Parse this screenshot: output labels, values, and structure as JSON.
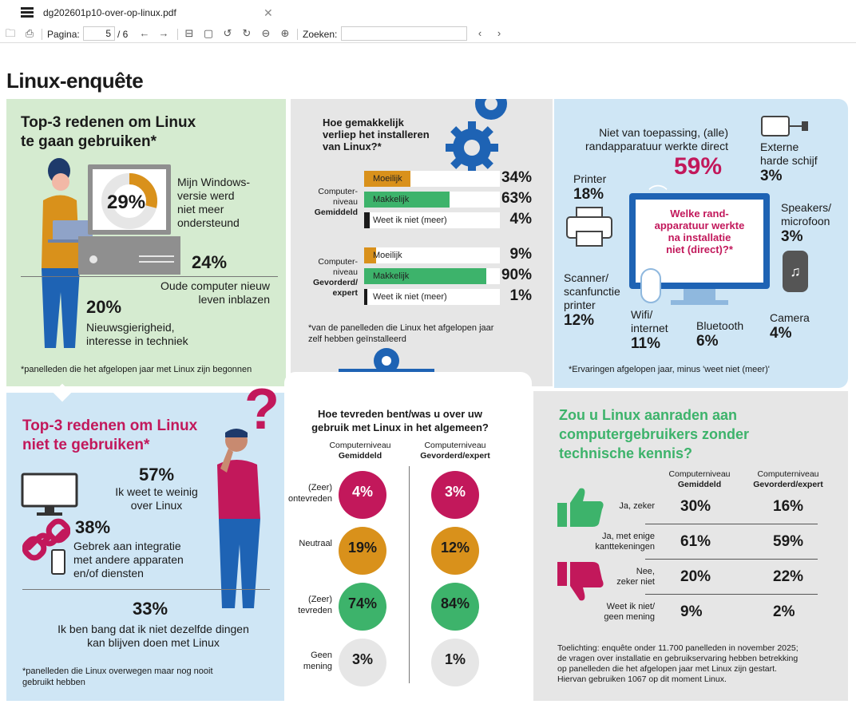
{
  "window": {
    "tab_title": "dg202601p10-over-op-linux.pdf"
  },
  "toolbar": {
    "page_label": "Pagina:",
    "page_current": "5",
    "page_total": "/ 6",
    "search_label": "Zoeken:",
    "search_value": ""
  },
  "doc": {
    "title": "Linux-enquête"
  },
  "p1": {
    "title1": "Top-3 redenen om Linux",
    "title2": "te gaan gebruiken*",
    "r1_pct": "29%",
    "r1_text": "Mijn Windows-\nversie werd\nniet meer\nondersteund",
    "r2_pct": "24%",
    "r2_text": "Oude computer nieuw\nleven inblazen",
    "r3_pct": "20%",
    "r3_text": "Nieuwsgierigheid,\ninteresse in techniek",
    "note": "*panelleden die het afgelopen jaar met Linux zijn begonnen"
  },
  "p2": {
    "title": "Hoe gemakkelijk\nverliep het installeren\nvan Linux?*",
    "group1": "Computer-\nniveau\nGemiddeld",
    "group1_bold": "Gemiddeld",
    "group2_bold": "Gevorderd/\nexpert",
    "group2": "Computer-\nniveau",
    "bars": [
      {
        "label": "Moeilijk",
        "pct": "34%",
        "value": 34,
        "color": "#d9911b"
      },
      {
        "label": "Makkelijk",
        "pct": "63%",
        "value": 63,
        "color": "#3db36b"
      },
      {
        "label": "Weet ik niet (meer)",
        "pct": "4%",
        "value": 4,
        "color": "#1a1a1a"
      },
      {
        "label": "Moeilijk",
        "pct": "9%",
        "value": 9,
        "color": "#d9911b"
      },
      {
        "label": "Makkelijk",
        "pct": "90%",
        "value": 90,
        "color": "#3db36b"
      },
      {
        "label": "Weet ik niet (meer)",
        "pct": "1%",
        "value": 1,
        "color": "#1a1a1a"
      }
    ],
    "note": "*van de panelleden die Linux het afgelopen jaar\nzelf hebben geïnstalleerd"
  },
  "p3": {
    "na_text": "Niet van toepassing, (alle)\nrandapparatuur werkte direct",
    "na_pct": "59%",
    "question": "Welke rand-\napparatuur werkte\nna installatie\nniet (direct)?*",
    "items": [
      {
        "label": "Externe\nharde schijf",
        "pct": "3%"
      },
      {
        "label": "Printer",
        "pct": "18%"
      },
      {
        "label": "Speakers/\nmicrofoon",
        "pct": "3%"
      },
      {
        "label": "Scanner/\nscanfunctie\nprinter",
        "pct": "12%"
      },
      {
        "label": "Wifi/\ninternet",
        "pct": "11%"
      },
      {
        "label": "Bluetooth",
        "pct": "6%"
      },
      {
        "label": "Camera",
        "pct": "4%"
      }
    ],
    "note": "*Ervaringen afgelopen jaar, minus 'weet niet (meer)'"
  },
  "p4": {
    "title1": "Top-3 redenen om Linux",
    "title2": "niet te gebruiken*",
    "r1_pct": "57%",
    "r1_text": "Ik weet te weinig\nover Linux",
    "r2_pct": "38%",
    "r2_text": "Gebrek aan integratie\nmet andere apparaten\nen/of diensten",
    "r3_pct": "33%",
    "r3_text": "Ik ben bang dat ik niet dezelfde dingen\nkan blijven doen met Linux",
    "note": "*panelleden die Linux overwegen maar nog nooit\ngebruikt hebben",
    "qmark": "?"
  },
  "p5": {
    "title": "Hoe tevreden bent/was u over uw\ngebruik met Linux in het algemeen?",
    "col1_top": "Computerniveau",
    "col1_bold": "Gemiddeld",
    "col2_top": "Computerniveau",
    "col2_bold": "Gevorderd/expert",
    "rows": [
      {
        "label": "(Zeer)\nontevreden",
        "v1": "4%",
        "v2": "3%",
        "color": "#c2185b",
        "tc": "#fff"
      },
      {
        "label": "Neutraal",
        "v1": "19%",
        "v2": "12%",
        "color": "#d9911b",
        "tc": "#1a1a1a"
      },
      {
        "label": "(Zeer)\ntevreden",
        "v1": "74%",
        "v2": "84%",
        "color": "#3db36b",
        "tc": "#1a1a1a"
      },
      {
        "label": "Geen\nmening",
        "v1": "3%",
        "v2": "1%",
        "color": "#e6e6e6",
        "tc": "#1a1a1a"
      }
    ]
  },
  "p6": {
    "title": "Zou u Linux aanraden aan\ncomputergebruikers zonder\ntechnische kennis?",
    "col1_top": "Computerniveau",
    "col1_bold": "Gemiddeld",
    "col2_top": "Computerniveau",
    "col2_bold": "Gevorderd/expert",
    "rows": [
      {
        "label": "Ja, zeker",
        "v1": "30%",
        "v2": "16%"
      },
      {
        "label": "Ja, met enige\nkanttekeningen",
        "v1": "61%",
        "v2": "59%"
      },
      {
        "label": "Nee,\nzeker niet",
        "v1": "20%",
        "v2": "22%"
      },
      {
        "label": "Weet ik niet/\ngeen mening",
        "v1": "9%",
        "v2": "2%"
      }
    ],
    "note": "Toelichting: enquête onder 11.700 panelleden in november 2025;\nde vragen over installatie en gebruikservaring hebben betrekking\nop panelleden die het afgelopen jaar met Linux zijn gestart.\nHiervan gebruiken 1067 op dit moment Linux."
  },
  "colors": {
    "green": "#3db36b",
    "magenta": "#c2185b",
    "orange": "#d9911b",
    "blue": "#1e63b4",
    "lightgreen": "#d5ebd0",
    "lightblue": "#cfe6f5",
    "lightgrey": "#e6e6e6"
  }
}
